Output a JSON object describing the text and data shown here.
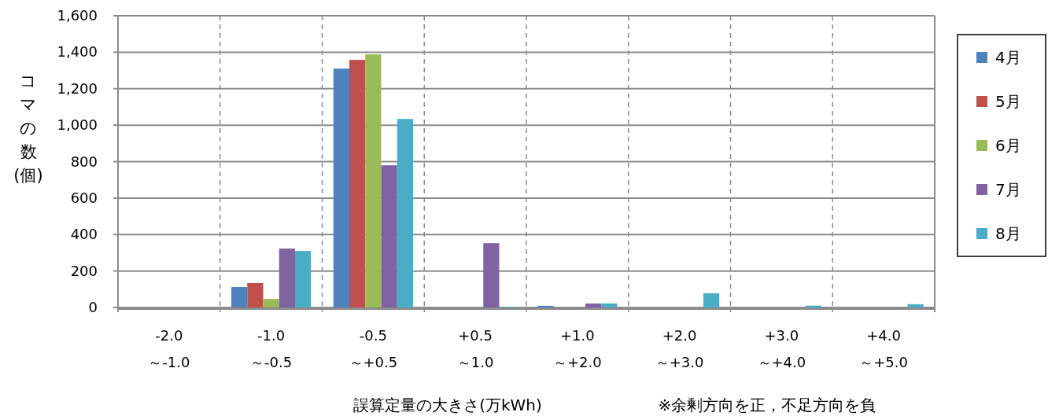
{
  "chart_data": {
    "type": "bar",
    "xlabel": "誤算定量の大きさ(万kWh)",
    "ylabel": "コマの数(個)",
    "categories": [
      "-2.0\n～-1.0",
      "-1.0\n～-0.5",
      "-0.5\n～+0.5",
      "+0.5\n～1.0",
      "+1.0\n～+2.0",
      "+2.0\n～+3.0",
      "+3.0\n～+4.0",
      "+4.0\n～+5.0"
    ],
    "series": [
      {
        "name": "4月",
        "color": "#4f81bd",
        "values": [
          0,
          112,
          1310,
          0,
          9,
          0,
          0,
          0
        ]
      },
      {
        "name": "5月",
        "color": "#c0504d",
        "values": [
          0,
          134,
          1358,
          0,
          0,
          0,
          0,
          0
        ]
      },
      {
        "name": "6月",
        "color": "#9bbb59",
        "values": [
          0,
          47,
          1388,
          0,
          0,
          0,
          0,
          0
        ]
      },
      {
        "name": "7月",
        "color": "#8064a2",
        "values": [
          0,
          323,
          780,
          353,
          22,
          0,
          0,
          0
        ]
      },
      {
        "name": "8月",
        "color": "#4bacc6",
        "values": [
          0,
          310,
          1034,
          3,
          22,
          78,
          10,
          18
        ]
      }
    ],
    "ylim": [
      0,
      1600
    ],
    "yticks": [
      0,
      {
        "value": 200,
        "label": "200"
      },
      {
        "value": 400,
        "label": "400"
      },
      {
        "value": 600,
        "label": "600"
      },
      {
        "value": 800,
        "label": "800"
      },
      {
        "value": 1000,
        "label": "1,000"
      },
      {
        "value": 1200,
        "label": "1,200"
      },
      {
        "value": 1400,
        "label": "1,400"
      },
      {
        "value": 1600,
        "label": "1,600"
      }
    ],
    "grid": "y",
    "legend": "right",
    "annotations": [
      "※余剰方向を正，不足方向を負"
    ]
  }
}
